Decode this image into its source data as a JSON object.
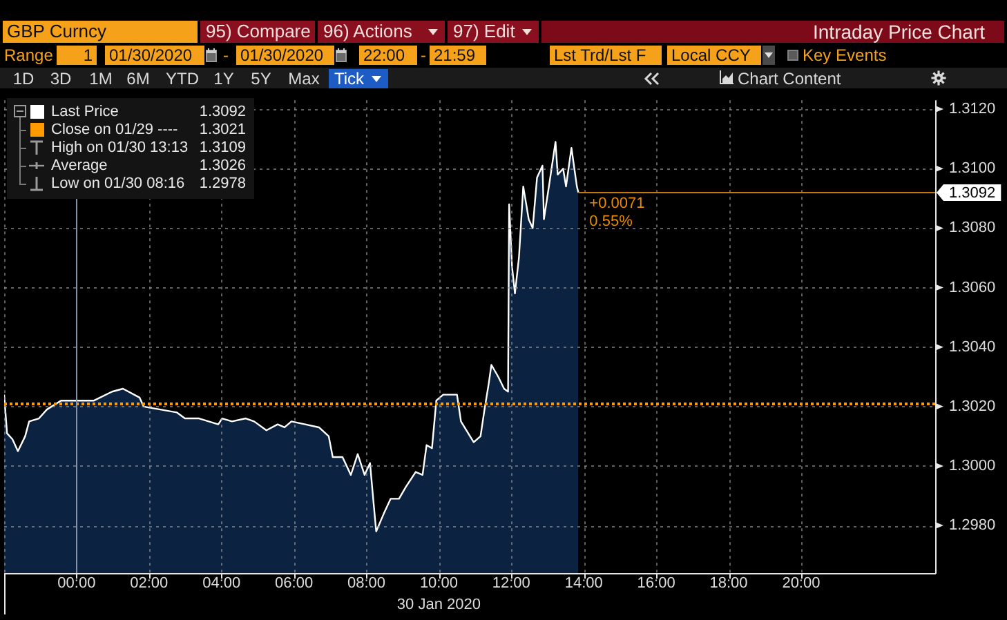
{
  "chart_data": {
    "type": "area",
    "title": "Intraday Price Chart",
    "xlabel": "30 Jan 2020",
    "x": [
      -2.0,
      -1.92,
      -1.77,
      -1.62,
      -1.42,
      -1.31,
      -1.04,
      -0.82,
      -0.43,
      -0.05,
      0.48,
      0.98,
      1.28,
      1.74,
      1.85,
      2.31,
      2.77,
      2.99,
      3.38,
      3.91,
      4.02,
      4.29,
      4.67,
      4.9,
      5.24,
      5.55,
      5.74,
      5.93,
      6.31,
      6.69,
      6.96,
      7.07,
      7.34,
      7.57,
      7.76,
      7.95,
      8.1,
      8.18,
      8.27,
      8.48,
      8.67,
      8.9,
      9.09,
      9.36,
      9.55,
      9.66,
      9.81,
      9.93,
      10.12,
      10.5,
      10.61,
      10.96,
      11.15,
      11.26,
      11.38,
      11.45,
      11.64,
      11.8,
      11.91,
      11.94,
      12.02,
      12.1,
      12.21,
      12.33,
      12.48,
      12.59,
      12.71,
      12.86,
      12.9,
      13.05,
      13.22,
      13.28,
      13.43,
      13.51,
      13.66,
      13.74,
      13.81,
      13.85
    ],
    "series": [
      {
        "name": "Last Price",
        "color": "#ffffff",
        "values": [
          1.3024,
          1.3011,
          1.3009,
          1.3005,
          1.301,
          1.3015,
          1.3016,
          1.3019,
          1.3022,
          1.3022,
          1.3022,
          1.3025,
          1.3026,
          1.3023,
          1.302,
          1.3019,
          1.3018,
          1.3016,
          1.3016,
          1.3014,
          1.3016,
          1.3015,
          1.3016,
          1.3015,
          1.3012,
          1.3014,
          1.3013,
          1.3015,
          1.3014,
          1.3013,
          1.301,
          1.3003,
          1.3003,
          1.2997,
          1.3004,
          1.2997,
          1.3001,
          1.299,
          1.2978,
          1.2984,
          1.2989,
          1.2989,
          1.2993,
          1.2998,
          1.2997,
          1.3007,
          1.3006,
          1.3022,
          1.3024,
          1.3024,
          1.3015,
          1.3008,
          1.301,
          1.3019,
          1.3028,
          1.3034,
          1.303,
          1.3026,
          1.3025,
          1.3088,
          1.3067,
          1.3058,
          1.307,
          1.3094,
          1.3083,
          1.308,
          1.3097,
          1.3101,
          1.3083,
          1.3095,
          1.3109,
          1.3098,
          1.31,
          1.3094,
          1.3107,
          1.31,
          1.3094,
          1.3092
        ]
      }
    ],
    "xlim": [
      -2,
      23.7
    ],
    "xticks": [
      {
        "value": -2,
        "label": null
      },
      {
        "value": 0,
        "label": "00:00"
      },
      {
        "value": 2,
        "label": "02:00"
      },
      {
        "value": 4,
        "label": "04:00"
      },
      {
        "value": 6,
        "label": "06:00"
      },
      {
        "value": 8,
        "label": "08:00"
      },
      {
        "value": 10,
        "label": "10:00"
      },
      {
        "value": 12,
        "label": "12:00"
      },
      {
        "value": 14,
        "label": "14:00"
      },
      {
        "value": 16,
        "label": "16:00"
      },
      {
        "value": 18,
        "label": "18:00"
      },
      {
        "value": 20,
        "label": "20:00"
      }
    ],
    "ylim": [
      1.2964,
      1.3123
    ],
    "yticks": [
      {
        "value": 1.298,
        "label": "1.2980"
      },
      {
        "value": 1.3,
        "label": "1.3000"
      },
      {
        "value": 1.302,
        "label": "1.3020"
      },
      {
        "value": 1.304,
        "label": "1.3040"
      },
      {
        "value": 1.306,
        "label": "1.3060"
      },
      {
        "value": 1.308,
        "label": "1.3080"
      },
      {
        "value": 1.31,
        "label": "1.3100"
      },
      {
        "value": 1.312,
        "label": "1.3120"
      }
    ],
    "grid": true,
    "legend": "top left",
    "ref_lines": [
      {
        "axis": "y",
        "value": 1.3021,
        "label": "Close on 01/29 ----",
        "color": "#ff9a00",
        "line_style": "dotted"
      },
      {
        "axis": "y",
        "value": 1.3092,
        "label": "1.3092",
        "color": "#c47a10",
        "line_style": "solid"
      },
      {
        "axis": "x",
        "value": 0,
        "color": "#8192aa",
        "line_style": "solid"
      }
    ],
    "annotations": [
      "GBP Curncy",
      "95) Compare",
      "96) Actions",
      "97) Edit",
      "Range",
      "1",
      "01/30/2020",
      "-",
      "01/30/2020",
      "22:00",
      "-",
      "21:59",
      "Lst Trd/Lst F",
      "Local CCY",
      "Key Events",
      "1D",
      "3D",
      "1M",
      "6M",
      "YTD",
      "1Y",
      "5Y",
      "Max",
      "Tick",
      "Chart Content",
      "1.3092",
      "1.3021",
      "High on 01/30 13:13",
      "1.3109",
      "Average",
      "1.3026",
      "Low on 01/30 08:16",
      "1.2978",
      {
        "text": "+0.0071",
        "x": 13.85,
        "y": 1.3092
      },
      {
        "text": "0.55%",
        "x": 13.85,
        "y": 1.3092
      }
    ]
  }
}
